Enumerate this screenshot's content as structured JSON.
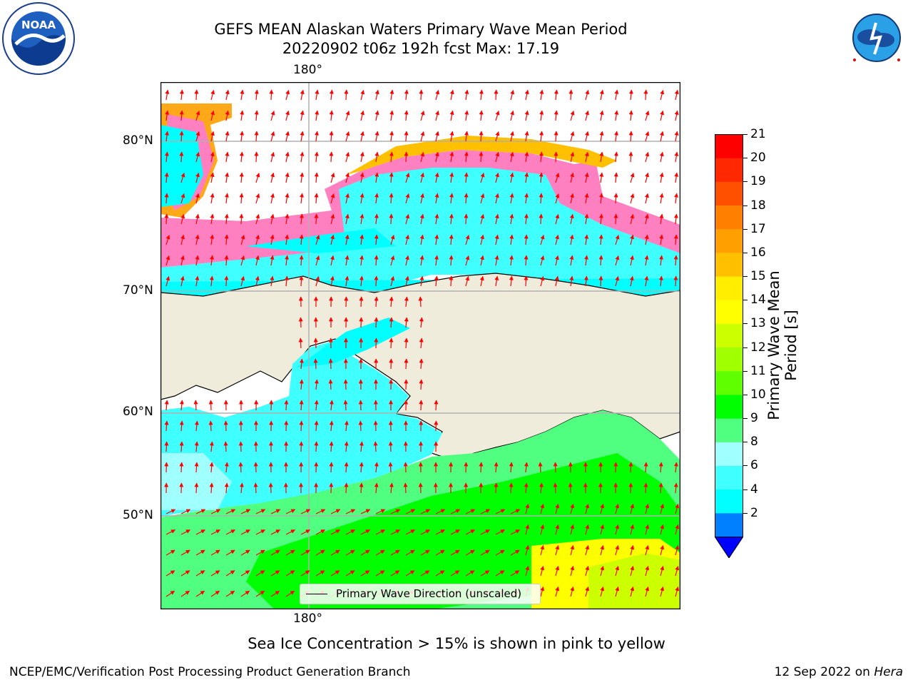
{
  "header": {
    "title_line1": "GEFS MEAN Alaskan Waters Primary Wave Mean Period",
    "title_line2": "20220902 t06z 192h fcst   Max: 17.19"
  },
  "logos": {
    "left": "NOAA",
    "left_ring": "NATIONAL OCEANIC AND ATMOSPHERIC ADMINISTRATION · U.S. DEPARTMENT OF COMMERCE",
    "right_ring": "NATIONAL WEATHER SERVICE"
  },
  "map": {
    "lon_label_top": "180°",
    "lon_label_bottom": "180°",
    "lat_labels": [
      "80°N",
      "70°N",
      "60°N",
      "50°N"
    ],
    "colors": {
      "ocean_land": "#efecdc",
      "arrow": "#ff0000",
      "grid": "#b0b0b0"
    }
  },
  "legend": {
    "label": "Primary Wave Direction (unscaled)"
  },
  "colorbar": {
    "label": "Primary Wave Mean Period [s]",
    "ticks": [
      "21",
      "20",
      "19",
      "18",
      "17",
      "16",
      "15",
      "14",
      "13",
      "12",
      "11",
      "10",
      "9",
      "8",
      "6",
      "4",
      "2"
    ],
    "colors": [
      "#0000ff",
      "#0080ff",
      "#00ffff",
      "#40ffff",
      "#a0ffff",
      "#50ff80",
      "#00ff00",
      "#60ff00",
      "#a0ff00",
      "#ccff00",
      "#ffff00",
      "#ffee00",
      "#ffc000",
      "#ffa000",
      "#ff8000",
      "#ff5000",
      "#ff2800",
      "#ff0000"
    ]
  },
  "caption": "Sea Ice Concentration > 15% is shown in pink to yellow",
  "footer": {
    "left": "NCEP/EMC/Verification Post Processing Product Generation Branch",
    "right_date": "12 Sep 2022 on ",
    "right_host": "Hera"
  }
}
